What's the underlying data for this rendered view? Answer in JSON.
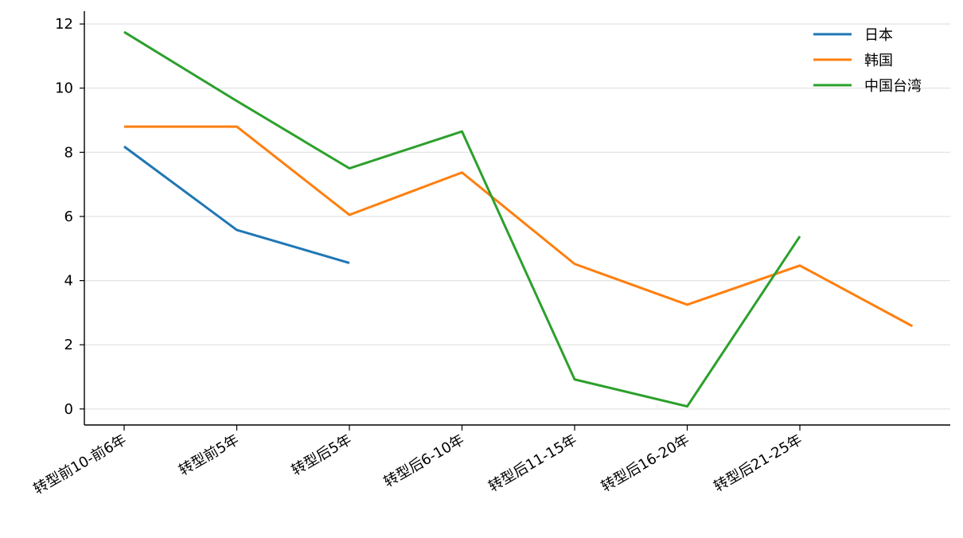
{
  "chart_data": {
    "type": "line",
    "title": "",
    "xlabel": "",
    "ylabel": "",
    "categories": [
      "转型前10-前6年",
      "转型前5年",
      "转型后5年",
      "转型后6-10年",
      "转型后11-15年",
      "转型后16-20年",
      "转型后21-25年",
      ""
    ],
    "yticks": [
      0,
      2,
      4,
      6,
      8,
      10,
      12
    ],
    "ylim": [
      -0.5,
      12.4
    ],
    "grid": "horizontal",
    "legend_position": "top-right",
    "series": [
      {
        "name": "日本",
        "color": "#1f77b4",
        "values": [
          8.18,
          5.58,
          4.55,
          null,
          null,
          null,
          null,
          null
        ]
      },
      {
        "name": "韩国",
        "color": "#ff7f0e",
        "values": [
          8.8,
          8.8,
          6.05,
          7.37,
          4.52,
          3.25,
          4.47,
          2.58
        ]
      },
      {
        "name": "中国台湾",
        "color": "#2ca02c",
        "values": [
          11.75,
          9.6,
          7.5,
          8.65,
          0.92,
          0.08,
          5.38,
          null
        ]
      }
    ]
  }
}
